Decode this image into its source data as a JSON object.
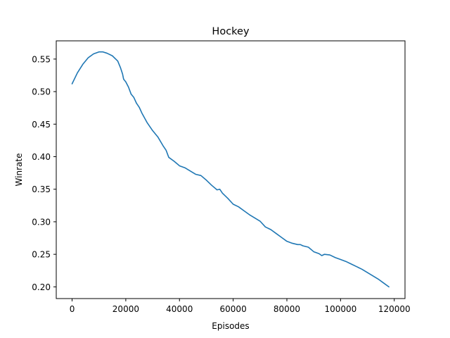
{
  "chart_data": {
    "type": "line",
    "title": "Hockey",
    "xlabel": "Episodes",
    "ylabel": "Winrate",
    "xlim": [
      -5900,
      124000
    ],
    "ylim": [
      0.182,
      0.578
    ],
    "xticks": [
      0,
      20000,
      40000,
      60000,
      80000,
      100000,
      120000
    ],
    "xtick_labels": [
      "0",
      "20000",
      "40000",
      "60000",
      "80000",
      "100000",
      "120000"
    ],
    "yticks": [
      0.2,
      0.25,
      0.3,
      0.35,
      0.4,
      0.45,
      0.5,
      0.55
    ],
    "ytick_labels": [
      "0.20",
      "0.25",
      "0.30",
      "0.35",
      "0.40",
      "0.45",
      "0.50",
      "0.55"
    ],
    "grid": false,
    "line_color": "#1f77b4",
    "series": [
      {
        "x": [
          0,
          2000,
          4000,
          6000,
          8000,
          10000,
          11500,
          13000,
          15000,
          17000,
          18000,
          18800,
          19200,
          20000,
          21000,
          22000,
          23000,
          24000,
          25000,
          26000,
          28000,
          30000,
          32000,
          34000,
          35000,
          36000,
          38000,
          40000,
          42000,
          44000,
          46000,
          48000,
          50000,
          52000,
          54000,
          55000,
          56000,
          58000,
          60000,
          62000,
          64000,
          66000,
          68000,
          70000,
          72000,
          74000,
          76000,
          78000,
          80000,
          82000,
          84000,
          85000,
          86000,
          88000,
          90000,
          92000,
          93000,
          94000,
          96000,
          98000,
          100000,
          102000,
          104000,
          106000,
          108000,
          110000,
          112000,
          114000,
          116000,
          118000
        ],
        "y": [
          0.512,
          0.529,
          0.542,
          0.552,
          0.558,
          0.561,
          0.561,
          0.559,
          0.555,
          0.547,
          0.537,
          0.527,
          0.519,
          0.515,
          0.507,
          0.496,
          0.491,
          0.482,
          0.476,
          0.467,
          0.452,
          0.44,
          0.43,
          0.416,
          0.41,
          0.399,
          0.393,
          0.386,
          0.383,
          0.378,
          0.373,
          0.371,
          0.364,
          0.356,
          0.349,
          0.35,
          0.344,
          0.336,
          0.327,
          0.323,
          0.317,
          0.311,
          0.306,
          0.301,
          0.292,
          0.288,
          0.282,
          0.276,
          0.27,
          0.267,
          0.265,
          0.265,
          0.263,
          0.261,
          0.254,
          0.251,
          0.248,
          0.25,
          0.249,
          0.245,
          0.242,
          0.239,
          0.235,
          0.231,
          0.227,
          0.222,
          0.217,
          0.212,
          0.206,
          0.2
        ]
      }
    ]
  }
}
